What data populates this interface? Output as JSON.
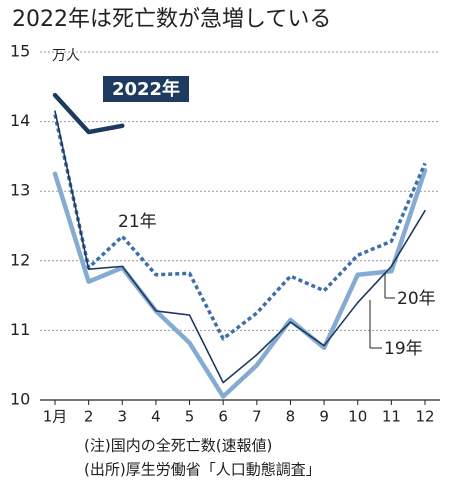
{
  "chart_data": {
    "type": "line",
    "title": "2022年は死亡数が急増している",
    "y_unit": "万人",
    "categories": [
      "1月",
      "2",
      "3",
      "4",
      "5",
      "6",
      "7",
      "8",
      "9",
      "10",
      "11",
      "12"
    ],
    "ylim": [
      10,
      15
    ],
    "yticks": [
      10,
      11,
      12,
      13,
      14,
      15
    ],
    "grid": true,
    "series": [
      {
        "name": "2022年",
        "color": "#1f3a5f",
        "style": "solid",
        "width": 4.5,
        "values": [
          14.38,
          13.85,
          13.94,
          null,
          null,
          null,
          null,
          null,
          null,
          null,
          null,
          null
        ]
      },
      {
        "name": "21年",
        "color": "#3d6fa8",
        "style": "dotted",
        "width": 3.5,
        "values": [
          14.1,
          11.9,
          12.35,
          11.8,
          11.82,
          10.88,
          11.25,
          11.78,
          11.57,
          12.08,
          12.28,
          13.4
        ]
      },
      {
        "name": "20年",
        "color": "#86abd3",
        "style": "solid",
        "width": 4.5,
        "values": [
          13.25,
          11.7,
          11.9,
          11.28,
          10.82,
          10.05,
          10.5,
          11.15,
          10.75,
          11.8,
          11.85,
          13.3
        ]
      },
      {
        "name": "19年",
        "color": "#1f3a5f",
        "style": "solid",
        "width": 1.6,
        "values": [
          14.15,
          11.88,
          11.92,
          11.28,
          11.22,
          10.25,
          10.65,
          11.12,
          10.78,
          11.4,
          11.92,
          12.72
        ]
      }
    ],
    "notes": [
      "(注)国内の全死亡数(速報値)",
      "(出所)厚生労働省「人口動態調査」"
    ]
  }
}
